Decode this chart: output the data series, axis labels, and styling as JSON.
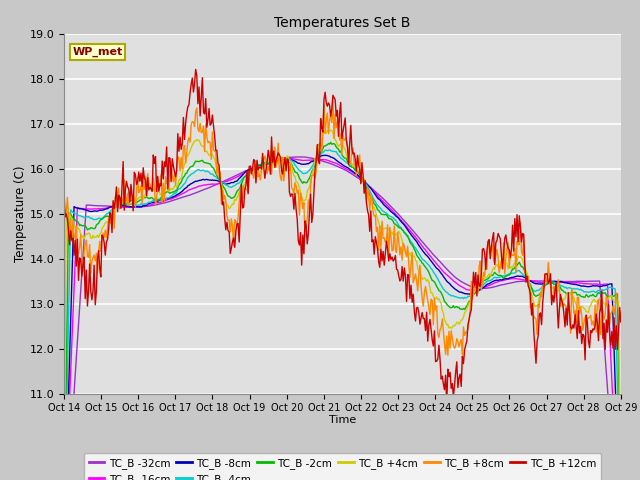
{
  "title": "Temperatures Set B",
  "xlabel": "Time",
  "ylabel": "Temperature (C)",
  "ylim": [
    11.0,
    19.0
  ],
  "yticks": [
    11.0,
    12.0,
    13.0,
    14.0,
    15.0,
    16.0,
    17.0,
    18.0,
    19.0
  ],
  "xtick_labels": [
    "Oct 14",
    "Oct 15",
    "Oct 16",
    "Oct 17",
    "Oct 18",
    "Oct 19",
    "Oct 20",
    "Oct 21",
    "Oct 22",
    "Oct 23",
    "Oct 24",
    "Oct 25",
    "Oct 26",
    "Oct 27",
    "Oct 28",
    "Oct 29"
  ],
  "fig_width": 6.4,
  "fig_height": 4.8,
  "fig_dpi": 100,
  "background_color": "#e0e0e0",
  "fig_bg_color": "#c8c8c8",
  "grid_color": "white",
  "wp_met_box_color": "#ffffcc",
  "wp_met_box_edge": "#aaaa00",
  "wp_met_color": "#880000",
  "series": [
    {
      "label": "TC_B -32cm",
      "color": "#9933cc"
    },
    {
      "label": "TC_B -16cm",
      "color": "#ff00ff"
    },
    {
      "label": "TC_B -8cm",
      "color": "#0000bb"
    },
    {
      "label": "TC_B -4cm",
      "color": "#00cccc"
    },
    {
      "label": "TC_B -2cm",
      "color": "#00bb00"
    },
    {
      "label": "TC_B +4cm",
      "color": "#cccc00"
    },
    {
      "label": "TC_B +8cm",
      "color": "#ff8800"
    },
    {
      "label": "TC_B +12cm",
      "color": "#cc0000"
    }
  ]
}
